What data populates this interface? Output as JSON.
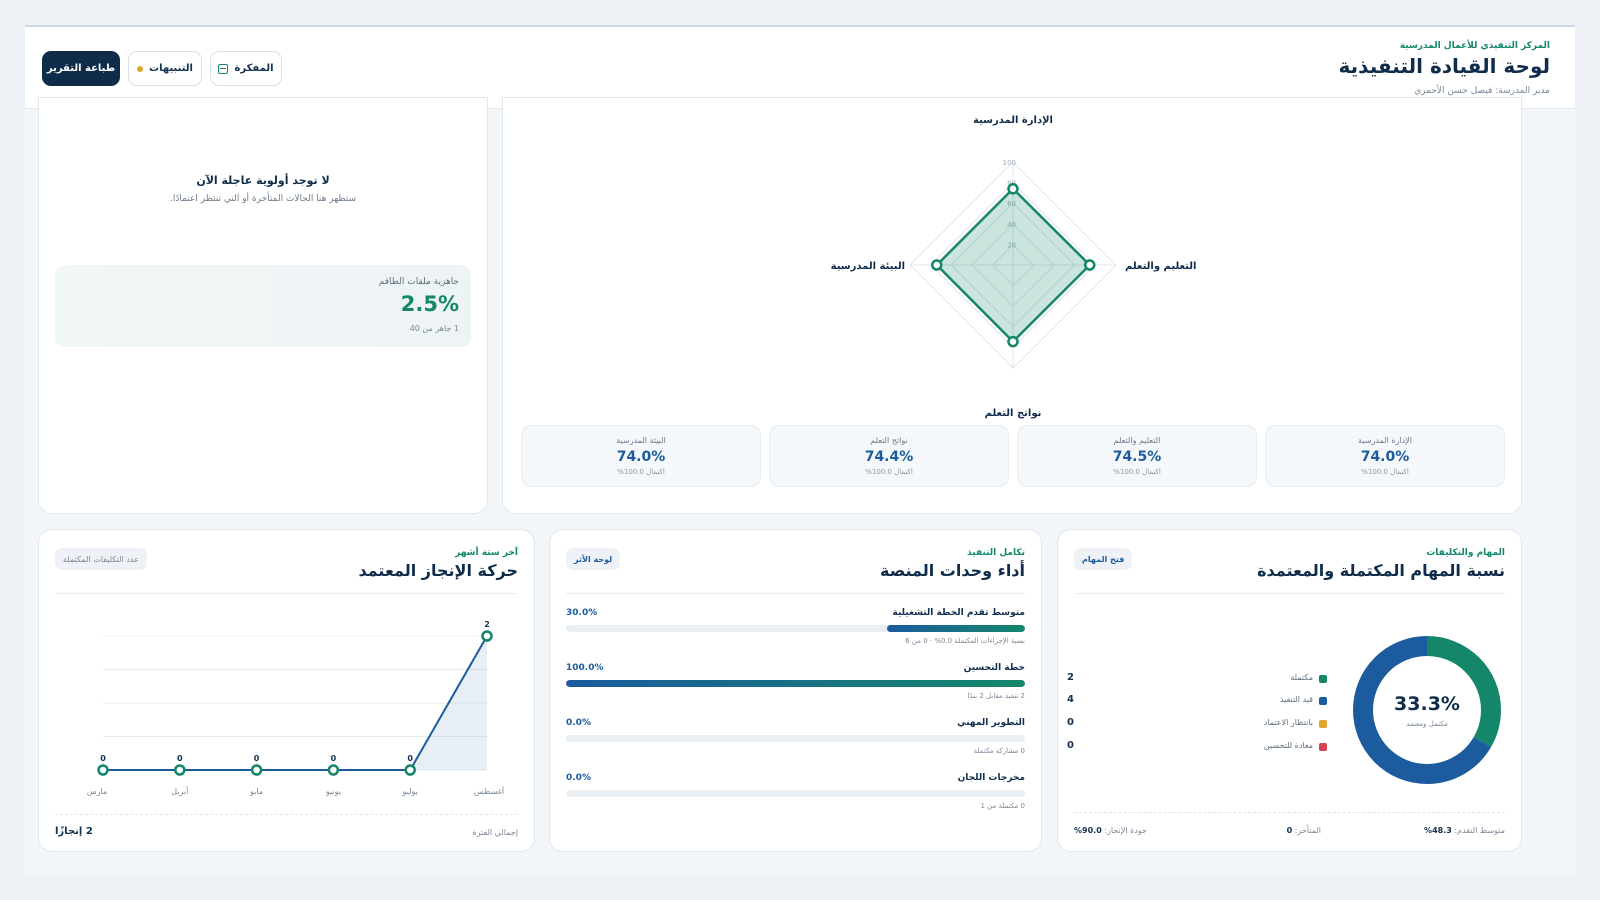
{
  "header": {
    "kicker": "المركز التنفيذي للأعمال المدرسية",
    "title": "لوحة القيادة التنفيذية",
    "subtitle": "مدير المدرسة: فيصل حسن الأحمري",
    "buttons": {
      "print": "طباعة التقرير",
      "alerts": "التنبيهات",
      "memo": "المفكرة"
    }
  },
  "priority": {
    "title": "لا توجد أولوية عاجلة الآن",
    "subtitle": "ستظهر هنا الحالات المتأخرة أو التي تنتظر اعتمادًا.",
    "staff_readiness": {
      "label": "جاهزية ملفات الطاقم",
      "value": "2.5%",
      "note": "1 جاهز من 40"
    }
  },
  "radar": {
    "axes": [
      "الإدارة المدرسية",
      "التعليم والتعلم",
      "نواتج التعلم",
      "البيئة المدرسية"
    ],
    "ticks": [
      "20",
      "40",
      "60",
      "80",
      "100"
    ],
    "values": [
      74.0,
      74.5,
      74.4,
      74.0
    ],
    "max": 100,
    "stats": [
      {
        "label": "الإدارة المدرسية",
        "value": "74.0%",
        "note": "اكتمال 100.0%"
      },
      {
        "label": "التعليم والتعلم",
        "value": "74.5%",
        "note": "اكتمال 100.0%"
      },
      {
        "label": "نواتج التعلم",
        "value": "74.4%",
        "note": "اكتمال 100.0%"
      },
      {
        "label": "البيئة المدرسية",
        "value": "74.0%",
        "note": "اكتمال 100.0%"
      }
    ]
  },
  "tasks": {
    "kicker": "المهام والتكليفات",
    "title": "نسبة المهام المكتملة والمعتمدة",
    "pill": "فتح المهام",
    "center_value": "33.3%",
    "center_label": "مكتمل ومعتمد",
    "legend": [
      {
        "label": "مكتملة",
        "value": "2",
        "count": 2,
        "color": "#14876a"
      },
      {
        "label": "قيد التنفيذ",
        "value": "4",
        "count": 4,
        "color": "#1b5b9e"
      },
      {
        "label": "بانتظار الاعتماد",
        "value": "0",
        "count": 0,
        "color": "#e0a72a"
      },
      {
        "label": "معادة للتحسين",
        "value": "0",
        "count": 0,
        "color": "#d9434f"
      }
    ],
    "footer": {
      "avg_progress": {
        "label": "متوسط التقدم:",
        "value": "48.3%"
      },
      "overdue": {
        "label": "المتأخر:",
        "value": "0"
      },
      "quality": {
        "label": "جودة الإنجاز:",
        "value": "90.0%"
      }
    }
  },
  "modules": {
    "kicker": "تكامل التنفيذ",
    "title": "أداء وحدات المنصة",
    "pill": "لوحة الأثر",
    "rows": [
      {
        "label": "متوسط تقدم الخطة التشغيلية",
        "value": "30.0%",
        "fraction": 0.3,
        "note": "نسبة الإجراءات المكتملة 0.0% · 0 من 6"
      },
      {
        "label": "خطة التحسين",
        "value": "100.0%",
        "fraction": 1.0,
        "note": "2 تنفيذ مقابل 2 بندًا"
      },
      {
        "label": "التطوير المهني",
        "value": "0.0%",
        "fraction": 0.0,
        "note": "0 مشاركة مكتملة"
      },
      {
        "label": "مخرجات اللجان",
        "value": "0.0%",
        "fraction": 0.0,
        "note": "0 مكتملة من 1"
      }
    ]
  },
  "chart_data": {
    "type": "line",
    "kicker": "آخر ستة أشهر",
    "title": "حركة الإنجاز المعتمد",
    "pill": "عدد التكليفات المكتملة",
    "x": [
      "مارس",
      "أبريل",
      "مايو",
      "يونيو",
      "يوليو",
      "أغسطس"
    ],
    "values": [
      0,
      0,
      0,
      0,
      0,
      2
    ],
    "ylim": [
      0,
      2
    ],
    "grid": true,
    "footer": {
      "label": "إجمالي الفترة",
      "value": "2 إنجازًا"
    }
  }
}
